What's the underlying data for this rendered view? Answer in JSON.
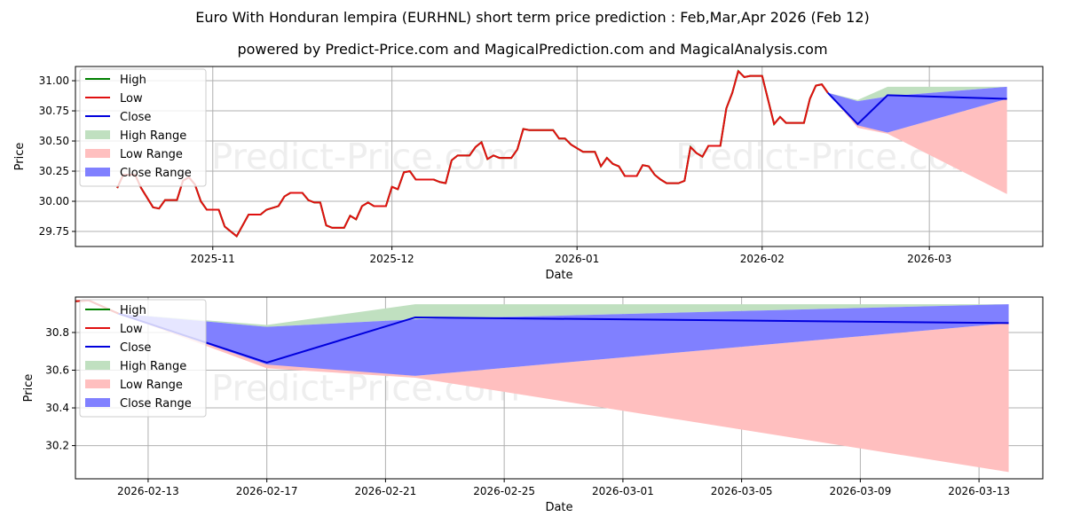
{
  "title": "Euro With Honduran lempira (EURHNL) short term price prediction : Feb,Mar,Apr 2026 (Feb 12)",
  "subtitle": "powered by Predict-Price.com and MagicalPrediction.com and MagicalAnalysis.com",
  "watermark": "Predict-Price.com",
  "colors": {
    "high": "#008000",
    "low": "#e01010",
    "close": "#0000dd",
    "high_range": "#c0e0c0",
    "low_range": "#ffbfbf",
    "close_range": "#8080ff"
  },
  "legend": [
    "High",
    "Low",
    "Close",
    "High Range",
    "Low Range",
    "Close Range"
  ],
  "chart_data": [
    {
      "type": "line",
      "xlabel": "Date",
      "ylabel": "Price",
      "xlim": [
        "2025-10-09",
        "2026-03-20"
      ],
      "ylim": [
        29.625,
        31.118
      ],
      "yticks": [
        29.75,
        30.0,
        30.25,
        30.5,
        30.75,
        31.0
      ],
      "ytick_labels": [
        "29.75",
        "30.00",
        "30.25",
        "30.50",
        "30.75",
        "31.00"
      ],
      "xticks": [
        "2025-11-01",
        "2025-12-01",
        "2026-01-01",
        "2026-02-01",
        "2026-03-01"
      ],
      "xtick_labels": [
        "2025-11",
        "2025-12",
        "2026-01",
        "2026-02",
        "2026-03"
      ],
      "legend_position": "top-left",
      "grid": true
    },
    {
      "type": "line",
      "xlabel": "Date",
      "ylabel": "Price",
      "xlim": [
        "2026-02-10.55",
        "2026-03-15.15"
      ],
      "ylim": [
        30.024,
        30.988
      ],
      "yticks": [
        30.2,
        30.4,
        30.6,
        30.8
      ],
      "ytick_labels": [
        "30.2",
        "30.4",
        "30.6",
        "30.8"
      ],
      "xticks": [
        "2026-02-13",
        "2026-02-17",
        "2026-02-21",
        "2026-02-25",
        "2026-03-01",
        "2026-03-05",
        "2026-03-09",
        "2026-03-13"
      ],
      "xtick_labels": [
        "2026-02-13",
        "2026-02-17",
        "2026-02-21",
        "2026-02-25",
        "2026-03-01",
        "2026-03-05",
        "2026-03-09",
        "2026-03-13"
      ],
      "legend_position": "top-left",
      "grid": true
    }
  ],
  "history": [
    [
      "2025-10-16",
      30.11
    ],
    [
      "2025-10-17",
      30.22
    ],
    [
      "2025-10-19",
      30.22
    ],
    [
      "2025-10-20",
      30.11
    ],
    [
      "2025-10-22",
      29.95
    ],
    [
      "2025-10-23",
      29.94
    ],
    [
      "2025-10-24",
      30.01
    ],
    [
      "2025-10-26",
      30.01
    ],
    [
      "2025-10-27",
      30.17
    ],
    [
      "2025-10-28",
      30.2
    ],
    [
      "2025-10-29",
      30.14
    ],
    [
      "2025-10-30",
      30.0
    ],
    [
      "2025-10-31",
      29.93
    ],
    [
      "2025-11-02",
      29.93
    ],
    [
      "2025-11-03",
      29.79
    ],
    [
      "2025-11-05",
      29.71
    ],
    [
      "2025-11-07",
      29.89
    ],
    [
      "2025-11-09",
      29.89
    ],
    [
      "2025-11-10",
      29.93
    ],
    [
      "2025-11-12",
      29.96
    ],
    [
      "2025-11-13",
      30.04
    ],
    [
      "2025-11-14",
      30.07
    ],
    [
      "2025-11-16",
      30.07
    ],
    [
      "2025-11-17",
      30.01
    ],
    [
      "2025-11-18",
      29.99
    ],
    [
      "2025-11-19",
      29.99
    ],
    [
      "2025-11-20",
      29.8
    ],
    [
      "2025-11-21",
      29.78
    ],
    [
      "2025-11-23",
      29.78
    ],
    [
      "2025-11-24",
      29.88
    ],
    [
      "2025-11-25",
      29.85
    ],
    [
      "2025-11-26",
      29.96
    ],
    [
      "2025-11-27",
      29.99
    ],
    [
      "2025-11-28",
      29.96
    ],
    [
      "2025-11-30",
      29.96
    ],
    [
      "2025-12-01",
      30.12
    ],
    [
      "2025-12-02",
      30.1
    ],
    [
      "2025-12-03",
      30.24
    ],
    [
      "2025-12-04",
      30.25
    ],
    [
      "2025-12-05",
      30.18
    ],
    [
      "2025-12-07",
      30.18
    ],
    [
      "2025-12-08",
      30.18
    ],
    [
      "2025-12-09",
      30.16
    ],
    [
      "2025-12-10",
      30.15
    ],
    [
      "2025-12-11",
      30.34
    ],
    [
      "2025-12-12",
      30.38
    ],
    [
      "2025-12-14",
      30.38
    ],
    [
      "2025-12-15",
      30.45
    ],
    [
      "2025-12-16",
      30.49
    ],
    [
      "2025-12-17",
      30.35
    ],
    [
      "2025-12-18",
      30.38
    ],
    [
      "2025-12-19",
      30.36
    ],
    [
      "2025-12-21",
      30.36
    ],
    [
      "2025-12-22",
      30.43
    ],
    [
      "2025-12-23",
      30.6
    ],
    [
      "2025-12-24",
      30.59
    ],
    [
      "2025-12-28",
      30.59
    ],
    [
      "2025-12-29",
      30.52
    ],
    [
      "2025-12-30",
      30.52
    ],
    [
      "2025-12-31",
      30.47
    ],
    [
      "2026-01-02",
      30.41
    ],
    [
      "2026-01-04",
      30.41
    ],
    [
      "2026-01-05",
      30.29
    ],
    [
      "2026-01-06",
      30.36
    ],
    [
      "2026-01-07",
      30.31
    ],
    [
      "2026-01-08",
      30.29
    ],
    [
      "2026-01-09",
      30.21
    ],
    [
      "2026-01-11",
      30.21
    ],
    [
      "2026-01-12",
      30.3
    ],
    [
      "2026-01-13",
      30.29
    ],
    [
      "2026-01-14",
      30.22
    ],
    [
      "2026-01-15",
      30.18
    ],
    [
      "2026-01-16",
      30.15
    ],
    [
      "2026-01-18",
      30.15
    ],
    [
      "2026-01-19",
      30.17
    ],
    [
      "2026-01-20",
      30.45
    ],
    [
      "2026-01-21",
      30.4
    ],
    [
      "2026-01-22",
      30.37
    ],
    [
      "2026-01-23",
      30.46
    ],
    [
      "2026-01-25",
      30.46
    ],
    [
      "2026-01-26",
      30.77
    ],
    [
      "2026-01-27",
      30.9
    ],
    [
      "2026-01-28",
      31.08
    ],
    [
      "2026-01-29",
      31.03
    ],
    [
      "2026-01-30",
      31.04
    ],
    [
      "2026-02-01",
      31.04
    ],
    [
      "2026-02-02",
      30.84
    ],
    [
      "2026-02-03",
      30.64
    ],
    [
      "2026-02-04",
      30.7
    ],
    [
      "2026-02-05",
      30.65
    ],
    [
      "2026-02-06",
      30.65
    ],
    [
      "2026-02-08",
      30.65
    ],
    [
      "2026-02-09",
      30.85
    ],
    [
      "2026-02-10",
      30.96
    ],
    [
      "2026-02-11",
      30.97
    ],
    [
      "2026-02-12",
      30.9
    ]
  ],
  "forecast": {
    "dates": [
      "2026-02-12",
      "2026-02-17",
      "2026-02-22",
      "2026-03-14"
    ],
    "close": [
      30.9,
      30.64,
      30.88,
      30.85
    ],
    "high_range": {
      "upper": [
        30.9,
        30.84,
        30.95,
        30.95
      ],
      "lower": [
        30.9,
        30.83,
        30.87,
        30.95
      ]
    },
    "low_range": {
      "upper": [
        30.9,
        30.64,
        30.57,
        30.85
      ],
      "lower": [
        30.9,
        30.61,
        30.56,
        30.06
      ]
    },
    "close_range": {
      "upper": [
        30.9,
        30.83,
        30.87,
        30.95
      ],
      "lower": [
        30.9,
        30.63,
        30.57,
        30.85
      ]
    }
  }
}
